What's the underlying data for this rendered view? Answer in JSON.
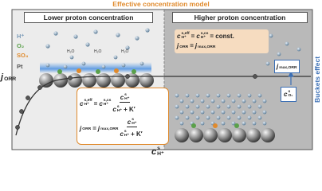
{
  "title": "Effective concentration model",
  "panels": [
    {
      "title": "Lower proton concentration"
    },
    {
      "title": "Higher proton concentration"
    }
  ],
  "legend": [
    "H⁺",
    "O₂",
    "SO₄",
    "Pt"
  ],
  "water_label": "H₂O",
  "y_axis": [
    {
      "b": "j",
      "sub": "ORR"
    }
  ],
  "x_axis": [
    {
      "b": "c",
      "sup": "s",
      "sub": "H⁺"
    }
  ],
  "side_label": "Buckets effect",
  "bucket_boxes": [
    [
      {
        "b": "j",
        "sub": "max,ORR"
      }
    ],
    [
      {
        "b": "c",
        "sup": "s",
        "sub": "O₂"
      }
    ]
  ],
  "high_equations": [
    [
      {
        "b": "c",
        "sup": "s,eff",
        "sub": "H⁺"
      },
      "=",
      {
        "b": "c",
        "sup": "s,cs",
        "sub": "H⁺"
      },
      "= const."
    ],
    [
      {
        "b": "j",
        "sub": "ORR"
      },
      "=",
      {
        "b": "j",
        "sub": "max,ORR"
      }
    ]
  ],
  "low_equations": [
    [
      {
        "b": "c",
        "sup": "s,eff",
        "sub": "H⁺"
      },
      "=",
      {
        "b": "c",
        "sup": "s,cs",
        "sub": "H⁺"
      },
      {
        "num": [
          {
            "b": "c",
            "sup": "s",
            "sub": "H⁺"
          }
        ],
        "den": [
          {
            "b": "c",
            "sup": "s",
            "sub": "H⁺"
          },
          "+ K′"
        ]
      }
    ],
    [
      {
        "b": "j",
        "sub": "ORR"
      },
      "=",
      {
        "b": "j",
        "sub": "max,ORR"
      },
      {
        "num": [
          {
            "b": "c",
            "sup": "s",
            "sub": "H⁺"
          }
        ],
        "den": [
          {
            "b": "c",
            "sup": "s",
            "sub": "H⁺"
          },
          "+ K′"
        ]
      }
    ]
  ]
}
